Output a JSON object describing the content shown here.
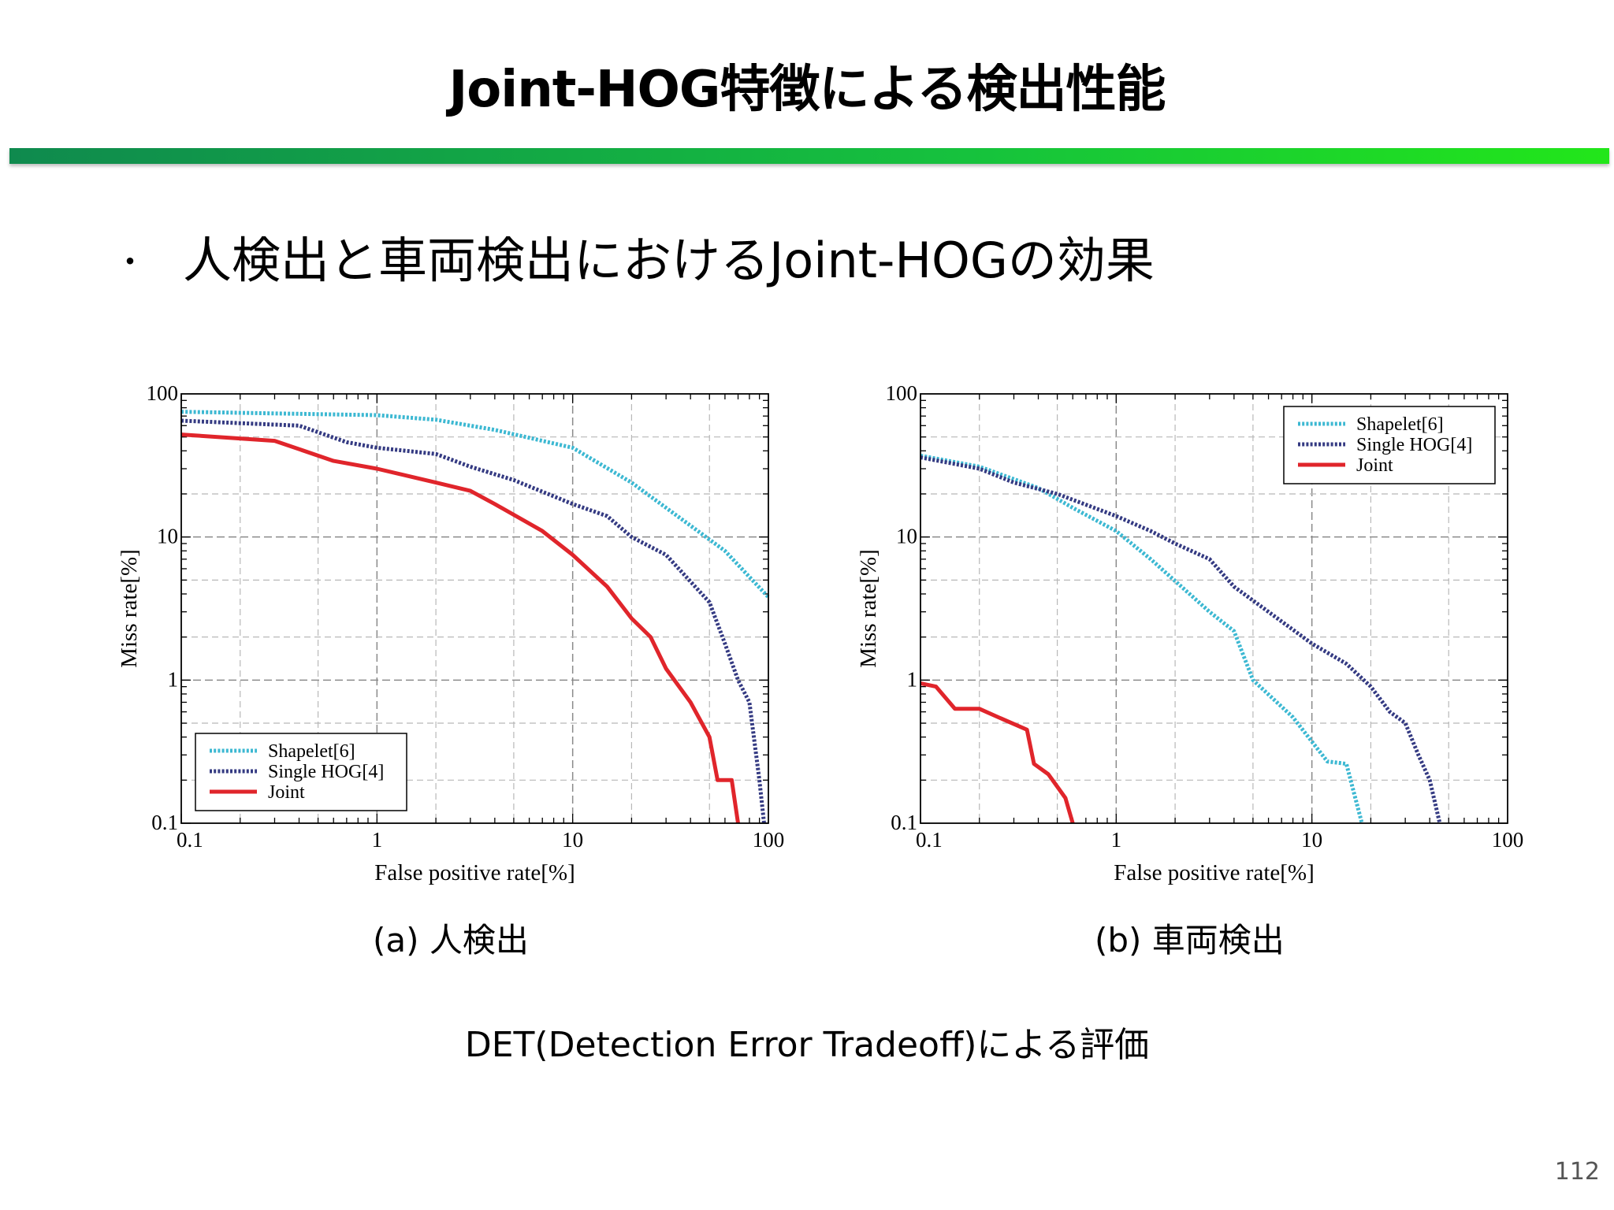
{
  "title": "Joint-HOG特徴による検出性能",
  "bullet": {
    "marker": "・",
    "text": "人検出と車両検出におけるJoint-HOGの効果"
  },
  "colors": {
    "shapelet": "#3cb8d2",
    "single_hog": "#343a82",
    "joint": "#e0252b"
  },
  "chart_data": [
    {
      "type": "line",
      "caption": "(a) 人検出",
      "xlabel": "False positive rate[%]",
      "ylabel": "Miss rate[%]",
      "xscale": "log",
      "yscale": "log",
      "xlim": [
        0.1,
        100
      ],
      "ylim": [
        0.1,
        100
      ],
      "x_ticks": [
        0.1,
        1,
        10,
        100
      ],
      "x_tick_labels": [
        "0.1",
        "1",
        "10",
        "100"
      ],
      "y_ticks": [
        0.1,
        1,
        10,
        100
      ],
      "y_tick_labels": [
        "0.1",
        "1",
        "10",
        "100"
      ],
      "grid": true,
      "legend_position": "bottom-left",
      "series": [
        {
          "name": "Shapelet[6]",
          "style": "dotted",
          "color": "#3cb8d2",
          "points": [
            [
              0.1,
              75
            ],
            [
              0.3,
              73
            ],
            [
              1,
              71
            ],
            [
              2,
              66
            ],
            [
              4,
              56
            ],
            [
              10,
              42
            ],
            [
              20,
              24
            ],
            [
              40,
              12
            ],
            [
              60,
              8
            ],
            [
              100,
              3.8
            ]
          ]
        },
        {
          "name": "Single HOG[4]",
          "style": "dotted",
          "color": "#343a82",
          "points": [
            [
              0.1,
              65
            ],
            [
              0.4,
              60
            ],
            [
              0.7,
              46
            ],
            [
              1,
              42
            ],
            [
              2,
              38
            ],
            [
              3,
              31
            ],
            [
              5,
              25
            ],
            [
              10,
              17
            ],
            [
              15,
              14
            ],
            [
              20,
              10
            ],
            [
              30,
              7.5
            ],
            [
              50,
              3.5
            ],
            [
              60,
              1.8
            ],
            [
              70,
              1
            ],
            [
              80,
              0.7
            ],
            [
              90,
              0.2
            ],
            [
              95,
              0.1
            ]
          ]
        },
        {
          "name": "Joint",
          "style": "solid",
          "color": "#e0252b",
          "points": [
            [
              0.1,
              52
            ],
            [
              0.3,
              47
            ],
            [
              0.6,
              34
            ],
            [
              1,
              30
            ],
            [
              2,
              24
            ],
            [
              3,
              21
            ],
            [
              4,
              17
            ],
            [
              7,
              11
            ],
            [
              10,
              7.5
            ],
            [
              15,
              4.5
            ],
            [
              20,
              2.7
            ],
            [
              25,
              2
            ],
            [
              30,
              1.2
            ],
            [
              40,
              0.7
            ],
            [
              50,
              0.4
            ],
            [
              55,
              0.2
            ],
            [
              65,
              0.2
            ],
            [
              70,
              0.1
            ]
          ]
        }
      ]
    },
    {
      "type": "line",
      "caption": "(b) 車両検出",
      "xlabel": "False positive rate[%]",
      "ylabel": "Miss rate[%]",
      "xscale": "log",
      "yscale": "log",
      "xlim": [
        0.1,
        100
      ],
      "ylim": [
        0.1,
        100
      ],
      "x_ticks": [
        0.1,
        1,
        10,
        100
      ],
      "x_tick_labels": [
        "0.1",
        "1",
        "10",
        "100"
      ],
      "y_ticks": [
        0.1,
        1,
        10,
        100
      ],
      "y_tick_labels": [
        "0.1",
        "1",
        "10",
        "100"
      ],
      "grid": true,
      "legend_position": "top-right",
      "series": [
        {
          "name": "Shapelet[6]",
          "style": "dotted",
          "color": "#3cb8d2",
          "points": [
            [
              0.1,
              37
            ],
            [
              0.2,
              31
            ],
            [
              0.4,
              22
            ],
            [
              0.6,
              16
            ],
            [
              1,
              11
            ],
            [
              1.5,
              7
            ],
            [
              3,
              3
            ],
            [
              4,
              2.2
            ],
            [
              5,
              1
            ],
            [
              8,
              0.55
            ],
            [
              12,
              0.27
            ],
            [
              15,
              0.26
            ],
            [
              18,
              0.1
            ]
          ]
        },
        {
          "name": "Single HOG[4]",
          "style": "dotted",
          "color": "#343a82",
          "points": [
            [
              0.1,
              36
            ],
            [
              0.2,
              30
            ],
            [
              0.3,
              24
            ],
            [
              0.5,
              20
            ],
            [
              1,
              14
            ],
            [
              1.5,
              11
            ],
            [
              2,
              9
            ],
            [
              3,
              7
            ],
            [
              4,
              4.5
            ],
            [
              6,
              3
            ],
            [
              10,
              1.8
            ],
            [
              15,
              1.3
            ],
            [
              20,
              0.9
            ],
            [
              25,
              0.6
            ],
            [
              30,
              0.5
            ],
            [
              35,
              0.3
            ],
            [
              40,
              0.2
            ],
            [
              45,
              0.1
            ]
          ]
        },
        {
          "name": "Joint",
          "style": "solid",
          "color": "#e0252b",
          "points": [
            [
              0.1,
              0.95
            ],
            [
              0.12,
              0.9
            ],
            [
              0.15,
              0.63
            ],
            [
              0.2,
              0.63
            ],
            [
              0.25,
              0.55
            ],
            [
              0.35,
              0.45
            ],
            [
              0.38,
              0.26
            ],
            [
              0.45,
              0.22
            ],
            [
              0.5,
              0.18
            ],
            [
              0.55,
              0.15
            ],
            [
              0.6,
              0.1
            ]
          ]
        }
      ]
    }
  ],
  "det_note": "DET(Detection Error Tradeoff)による評価",
  "page_number": "112"
}
